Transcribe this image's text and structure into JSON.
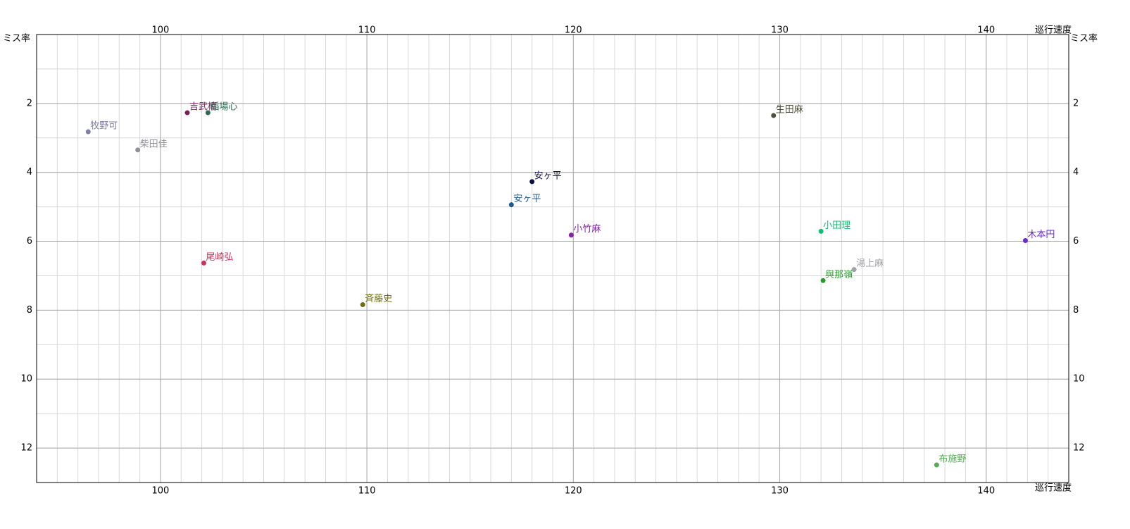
{
  "chart_data": {
    "type": "scatter",
    "x_label": "巡行速度",
    "y_label": "ミス率",
    "xlim": [
      94,
      144
    ],
    "xticks": [
      100,
      110,
      120,
      130,
      140
    ],
    "ylim": [
      0,
      13
    ],
    "yticks": [
      2,
      4,
      6,
      8,
      10,
      12
    ],
    "y_inverted": true,
    "grid": true,
    "minor_grid_step": 1,
    "points": [
      {
        "label": "牧野可",
        "color": "#7f7fa0",
        "x": 96.5,
        "y": 2.82
      },
      {
        "label": "柴田佳",
        "color": "#909098",
        "x": 98.9,
        "y": 3.35
      },
      {
        "label": "吉武楠",
        "color": "#7a1f5e",
        "x": 101.3,
        "y": 2.27
      },
      {
        "label": "稲場心",
        "color": "#2e6b50",
        "x": 102.3,
        "y": 2.27
      },
      {
        "label": "生田麻",
        "color": "#4f4f3a",
        "x": 129.7,
        "y": 2.35
      },
      {
        "label": "安ヶ平",
        "color": "#101040",
        "x": 118.0,
        "y": 4.27
      },
      {
        "label": "安ヶ平",
        "color": "#1f5a8f",
        "x": 117.0,
        "y": 4.94
      },
      {
        "label": "小竹麻",
        "color": "#8a1fa8",
        "x": 119.9,
        "y": 5.82
      },
      {
        "label": "尾崎弘",
        "color": "#d0305a",
        "x": 102.1,
        "y": 6.63
      },
      {
        "label": "斉藤史",
        "color": "#6f6f10",
        "x": 109.8,
        "y": 7.84
      },
      {
        "label": "小田理",
        "color": "#10c070",
        "x": 132.0,
        "y": 5.71
      },
      {
        "label": "湯上麻",
        "color": "#a0a0a8",
        "x": 133.6,
        "y": 6.82
      },
      {
        "label": "與那嶺",
        "color": "#2a9a2a",
        "x": 132.1,
        "y": 7.14
      },
      {
        "label": "木本円",
        "color": "#6a2ad0",
        "x": 141.9,
        "y": 5.98
      },
      {
        "label": "布施野",
        "color": "#50b050",
        "x": 137.6,
        "y": 12.49
      }
    ]
  }
}
